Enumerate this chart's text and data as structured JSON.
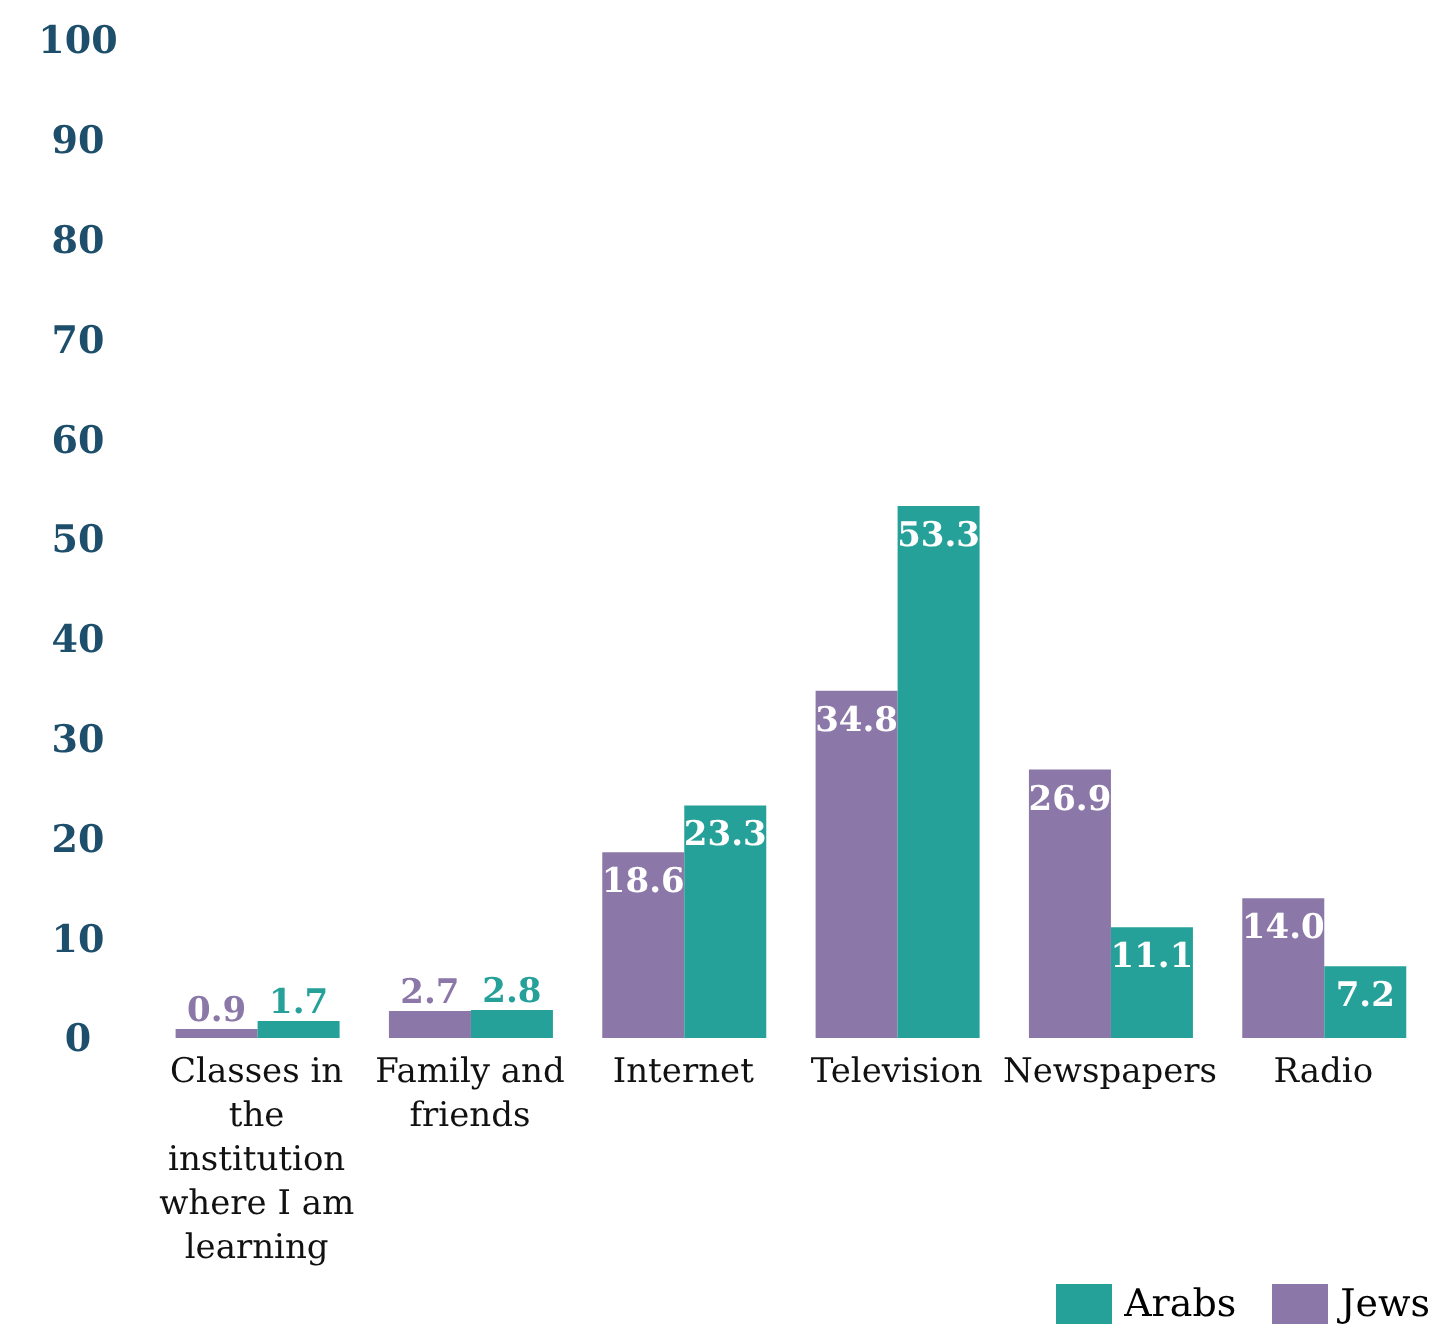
{
  "chart_data": {
    "type": "bar",
    "categories": [
      "Classes in the institution where I am learning",
      "Family and friends",
      "Internet",
      "Television",
      "Newspapers",
      "Radio"
    ],
    "series": [
      {
        "name": "Jews",
        "color": "#8b77a8",
        "values": [
          0.9,
          2.7,
          18.6,
          34.8,
          26.9,
          14.0
        ],
        "value_labels": [
          "0.9",
          "2.7",
          "18.6",
          "34.8",
          "26.9",
          "14.0"
        ]
      },
      {
        "name": "Arabs",
        "color": "#26a19a",
        "values": [
          1.7,
          2.8,
          23.3,
          53.3,
          11.1,
          7.2
        ],
        "value_labels": [
          "1.7",
          "2.8",
          "23.3",
          "53.3",
          "11.1",
          "7.2"
        ]
      }
    ],
    "ylim": [
      0,
      100
    ],
    "yticks": [
      0,
      10,
      20,
      30,
      40,
      50,
      60,
      70,
      80,
      90,
      100
    ],
    "grid": false,
    "legend": "bottom right"
  }
}
